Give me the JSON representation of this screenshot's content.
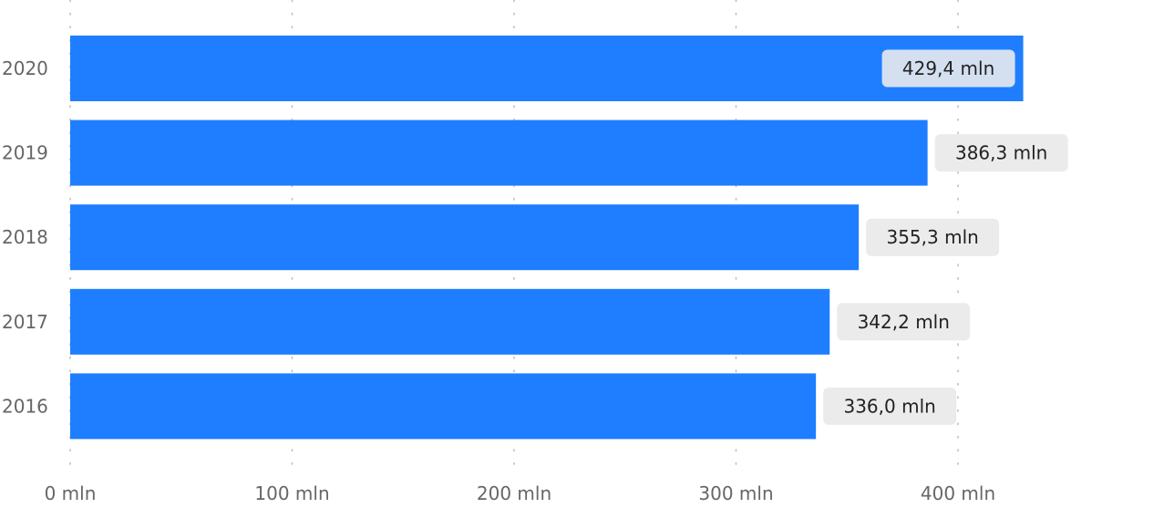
{
  "chart_data": {
    "type": "bar",
    "orientation": "horizontal",
    "categories": [
      "2020",
      "2019",
      "2018",
      "2017",
      "2016"
    ],
    "values": [
      429.4,
      386.3,
      355.3,
      342.2,
      336.0
    ],
    "data_labels": [
      "429,4 mln",
      "386,3 mln",
      "355,3 mln",
      "342,2 mln",
      "336,0 mln"
    ],
    "x_ticks": [
      0,
      100,
      200,
      300,
      400
    ],
    "x_tick_labels": [
      "0 mln",
      "100 mln",
      "200 mln",
      "300 mln",
      "400 mln"
    ],
    "xlim": [
      0,
      400
    ],
    "title": "",
    "xlabel": "",
    "ylabel": "",
    "grid": "vertical-dotted",
    "bar_color": "#1E7EFF",
    "label_bg_color": "#EBEBEB",
    "label_bg_color_inside": "#D4E0F0",
    "gridline_color": "#BBBBBB"
  }
}
